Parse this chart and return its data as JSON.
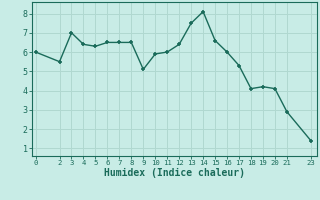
{
  "x": [
    0,
    2,
    3,
    4,
    5,
    6,
    7,
    8,
    9,
    10,
    11,
    12,
    13,
    14,
    15,
    16,
    17,
    18,
    19,
    20,
    21,
    23
  ],
  "y": [
    6.0,
    5.5,
    7.0,
    6.4,
    6.3,
    6.5,
    6.5,
    6.5,
    5.1,
    5.9,
    6.0,
    6.4,
    7.5,
    8.1,
    6.6,
    6.0,
    5.3,
    4.1,
    4.2,
    4.1,
    2.9,
    1.4
  ],
  "line_color": "#1a6b5a",
  "marker": "+",
  "bg_color": "#c8ece6",
  "grid_color": "#b0d8d0",
  "xlabel": "Humidex (Indice chaleur)",
  "xlabel_color": "#1a6b5a",
  "tick_color": "#1a6b5a",
  "axis_color": "#1a6b5a",
  "xticks": [
    0,
    2,
    3,
    4,
    5,
    6,
    7,
    8,
    9,
    10,
    11,
    12,
    13,
    14,
    15,
    16,
    17,
    18,
    19,
    20,
    21,
    23
  ],
  "yticks": [
    1,
    2,
    3,
    4,
    5,
    6,
    7,
    8
  ],
  "xlim": [
    -0.3,
    23.5
  ],
  "ylim": [
    0.6,
    8.6
  ]
}
